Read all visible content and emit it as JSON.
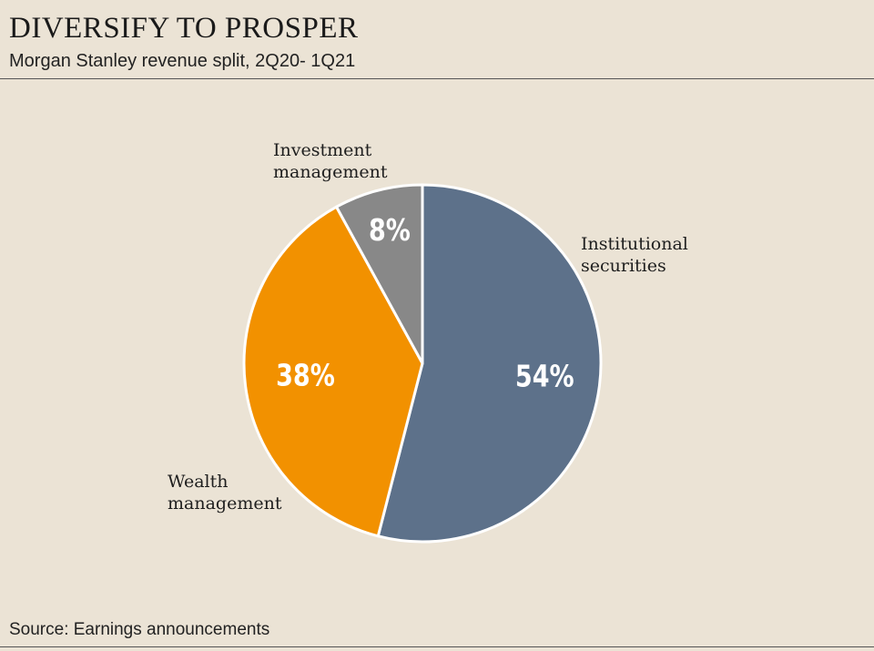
{
  "header": {
    "title": "DIVERSIFY TO PROSPER",
    "subtitle": "Morgan Stanley revenue split, 2Q20- 1Q21"
  },
  "footer": {
    "source": "Source: Earnings announcements"
  },
  "chart_data": {
    "type": "pie",
    "title": "DIVERSIFY TO PROSPER",
    "subtitle": "Morgan Stanley revenue split, 2Q20- 1Q21",
    "slices": [
      {
        "name": "Institutional securities",
        "label_lines": [
          "Institutional",
          "securities"
        ],
        "value": 54,
        "value_label": "54%",
        "color": "#5d718a"
      },
      {
        "name": "Wealth management",
        "label_lines": [
          "Wealth",
          "management"
        ],
        "value": 38,
        "value_label": "38%",
        "color": "#f29100"
      },
      {
        "name": "Investment management",
        "label_lines": [
          "Investment",
          "management"
        ],
        "value": 8,
        "value_label": "8%",
        "color": "#888888"
      }
    ],
    "start": "12 o'clock",
    "direction": "clockwise",
    "slice_border_color": "#ffffff"
  }
}
